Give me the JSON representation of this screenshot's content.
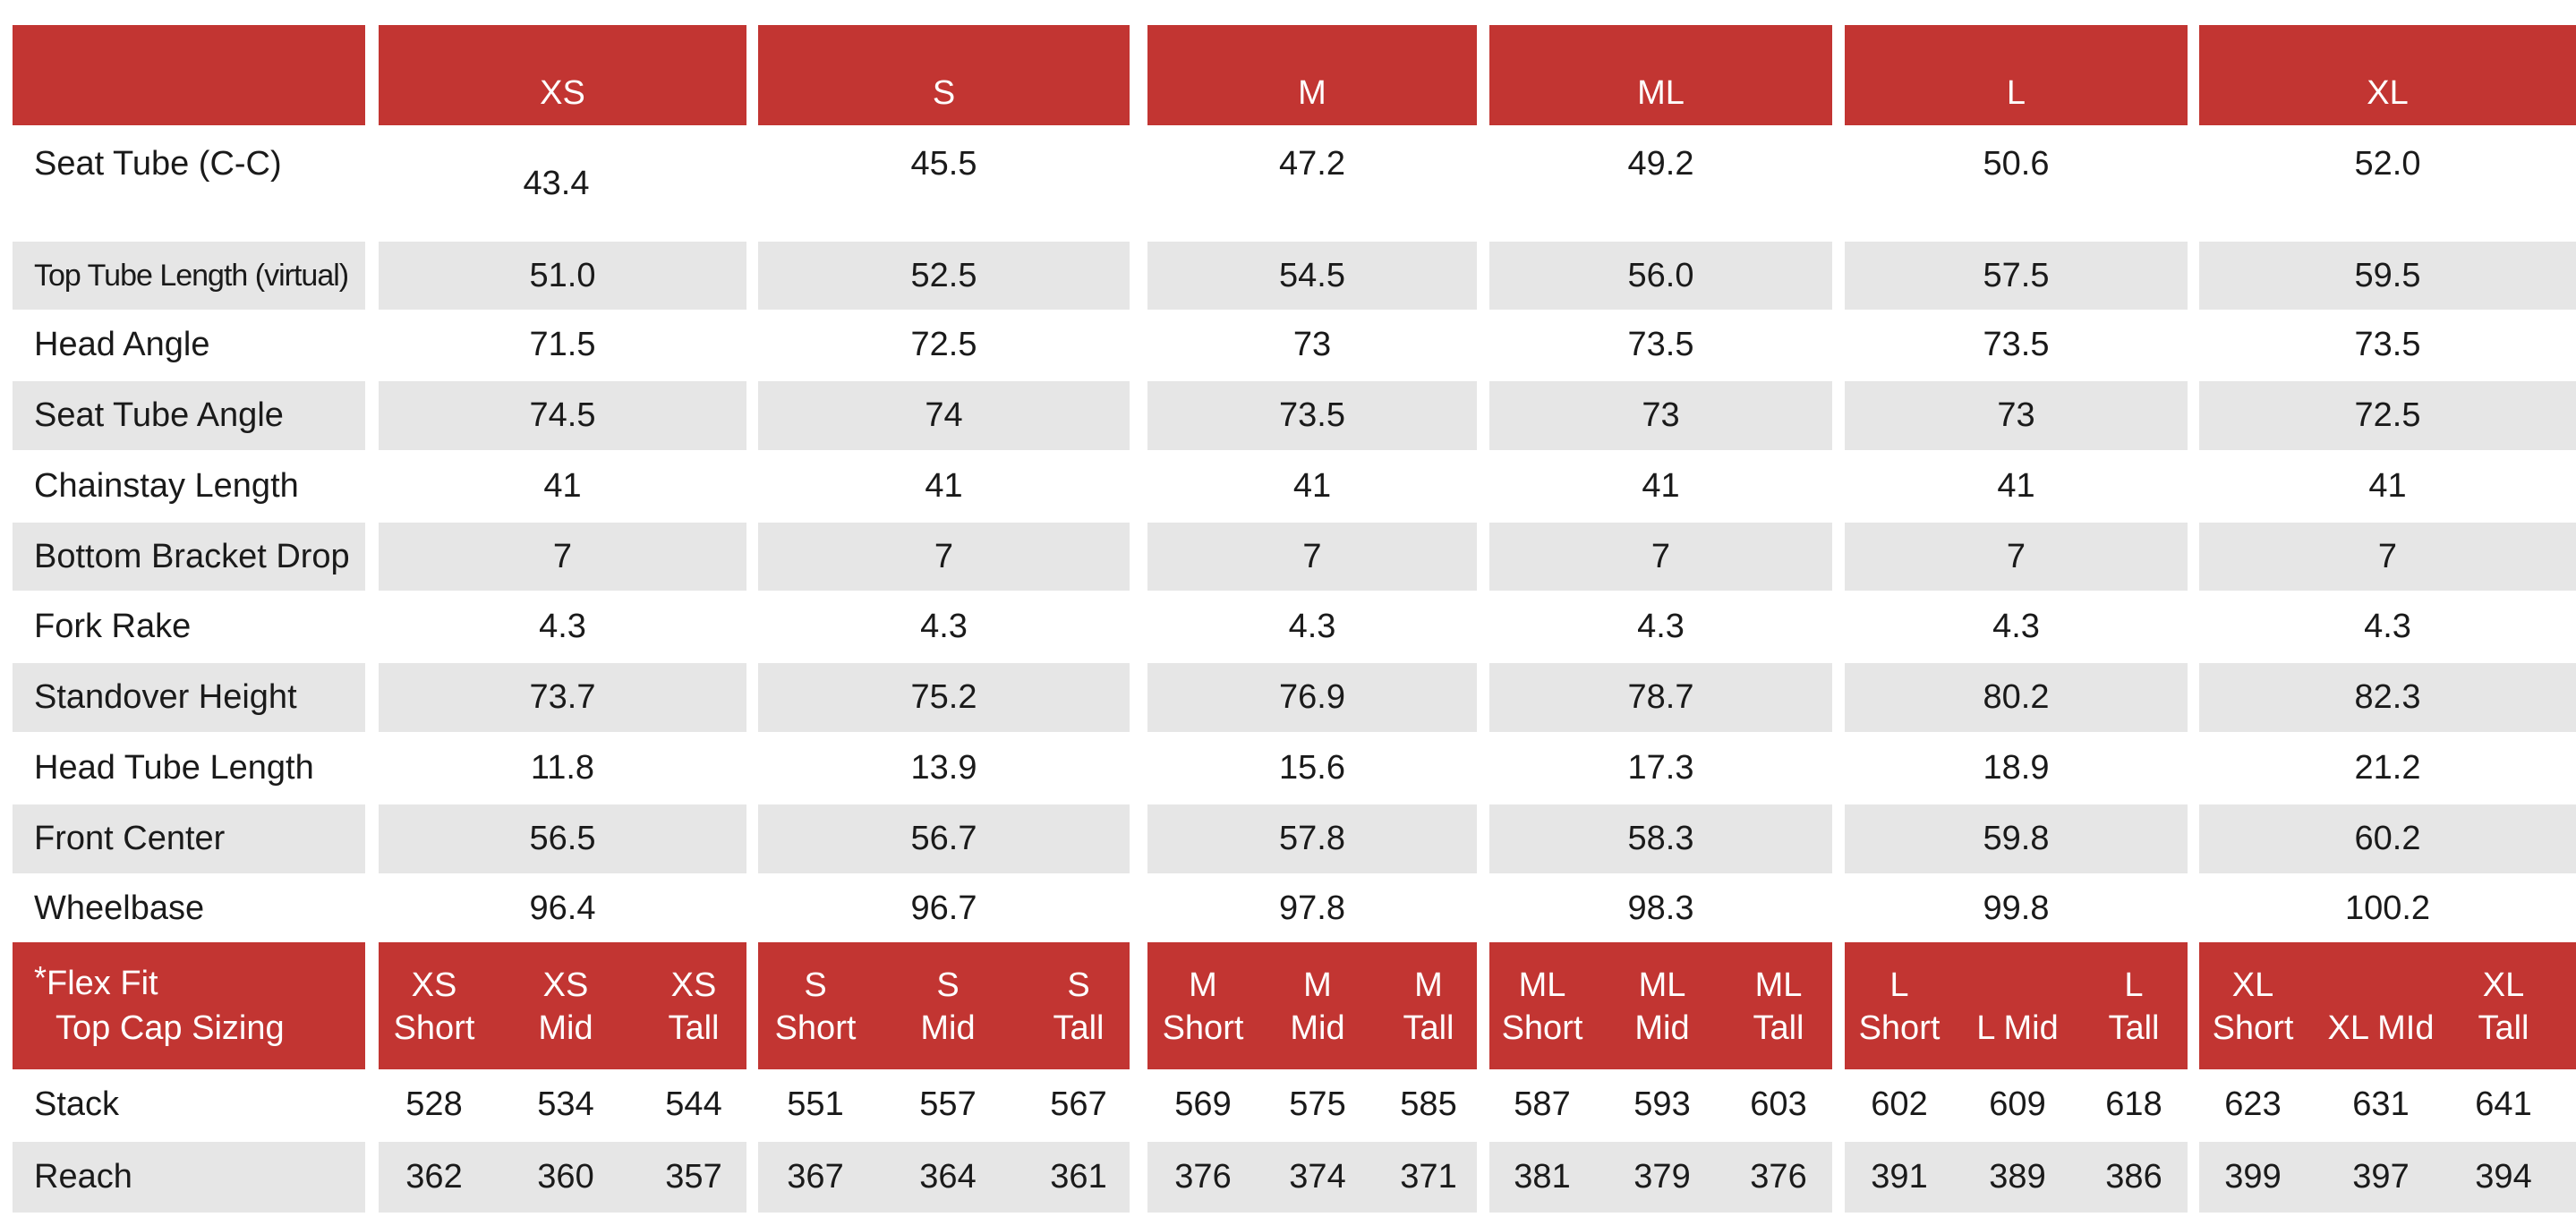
{
  "sizes": [
    "XS",
    "S",
    "M",
    "ML",
    "L",
    "XL"
  ],
  "rows": [
    {
      "label": "Seat Tube (C-C)",
      "values": [
        "43.4",
        "45.5",
        "47.2",
        "49.2",
        "50.6",
        "52.0"
      ]
    },
    {
      "label": "Top Tube Length (virtual)",
      "values": [
        "51.0",
        "52.5",
        "54.5",
        "56.0",
        "57.5",
        "59.5"
      ]
    },
    {
      "label": "Head Angle",
      "values": [
        "71.5",
        "72.5",
        "73",
        "73.5",
        "73.5",
        "73.5"
      ]
    },
    {
      "label": "Seat Tube Angle",
      "values": [
        "74.5",
        "74",
        "73.5",
        "73",
        "73",
        "72.5"
      ]
    },
    {
      "label": "Chainstay Length",
      "values": [
        "41",
        "41",
        "41",
        "41",
        "41",
        "41"
      ]
    },
    {
      "label": "Bottom Bracket Drop",
      "values": [
        "7",
        "7",
        "7",
        "7",
        "7",
        "7"
      ]
    },
    {
      "label": "Fork Rake",
      "values": [
        "4.3",
        "4.3",
        "4.3",
        "4.3",
        "4.3",
        "4.3"
      ]
    },
    {
      "label": "Standover Height",
      "values": [
        "73.7",
        "75.2",
        "76.9",
        "78.7",
        "80.2",
        "82.3"
      ]
    },
    {
      "label": "Head Tube Length",
      "values": [
        "11.8",
        "13.9",
        "15.6",
        "17.3",
        "18.9",
        "21.2"
      ]
    },
    {
      "label": "Front Center",
      "values": [
        "56.5",
        "56.7",
        "57.8",
        "58.3",
        "59.8",
        "60.2"
      ]
    },
    {
      "label": "Wheelbase",
      "values": [
        "96.4",
        "96.7",
        "97.8",
        "98.3",
        "99.8",
        "100.2"
      ]
    }
  ],
  "flex_fit": {
    "asterisk": "*",
    "line1": "Flex Fit",
    "line2": "Top Cap Sizing",
    "columns": [
      [
        "XS",
        "Short"
      ],
      [
        "XS",
        "Mid"
      ],
      [
        "XS",
        "Tall"
      ],
      [
        "S",
        "Short"
      ],
      [
        "S",
        "Mid"
      ],
      [
        "S",
        "Tall"
      ],
      [
        "M",
        "Short"
      ],
      [
        "M",
        "Mid"
      ],
      [
        "M",
        "Tall"
      ],
      [
        "ML",
        "Short"
      ],
      [
        "ML",
        "Mid"
      ],
      [
        "ML",
        "Tall"
      ],
      [
        "L",
        "Short"
      ],
      [
        "",
        "L Mid"
      ],
      [
        "L",
        "Tall"
      ],
      [
        "XL",
        "Short"
      ],
      [
        "",
        "XL MId"
      ],
      [
        "XL",
        "Tall"
      ]
    ],
    "rows": [
      {
        "label": "Stack",
        "values": [
          "528",
          "534",
          "544",
          "551",
          "557",
          "567",
          "569",
          "575",
          "585",
          "587",
          "593",
          "603",
          "602",
          "609",
          "618",
          "623",
          "631",
          "641"
        ]
      },
      {
        "label": "Reach",
        "values": [
          "362",
          "360",
          "357",
          "367",
          "364",
          "361",
          "376",
          "374",
          "371",
          "381",
          "379",
          "376",
          "391",
          "389",
          "386",
          "399",
          "397",
          "394"
        ]
      }
    ]
  },
  "colors": {
    "header_red": "#c23532",
    "row_grey": "#e6e6e6"
  }
}
